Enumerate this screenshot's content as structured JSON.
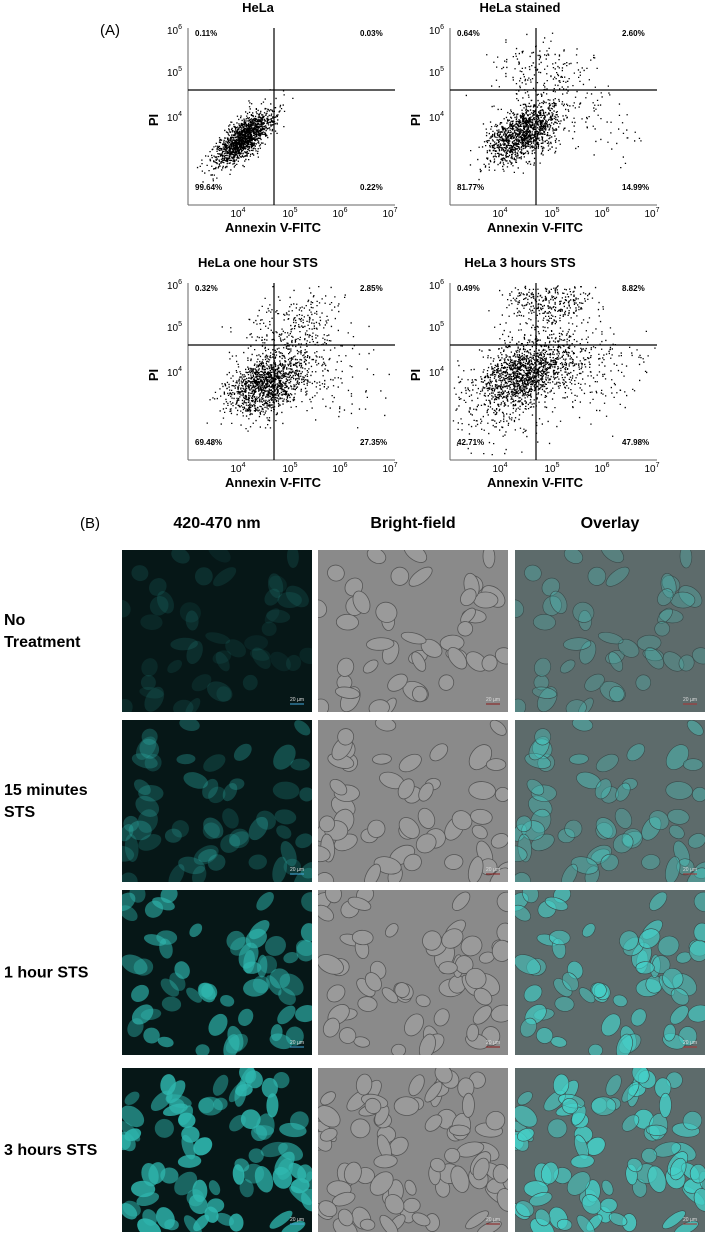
{
  "panel_a": {
    "label": "(A)",
    "x_axis_label": "Annexin V-FITC",
    "y_axis_label": "PI",
    "xticks": [
      {
        "base": "10",
        "exp": "4"
      },
      {
        "base": "10",
        "exp": "5"
      },
      {
        "base": "10",
        "exp": "6"
      },
      {
        "base": "10",
        "exp": "7"
      }
    ],
    "yticks": [
      {
        "base": "10",
        "exp": "6"
      },
      {
        "base": "10",
        "exp": "5"
      },
      {
        "base": "10",
        "exp": "4"
      }
    ],
    "plots": [
      {
        "title": "HeLa",
        "quadrants": {
          "top_left": "0.11%",
          "top_right": "0.03%",
          "bottom_left": "99.64%",
          "bottom_right": "0.22%"
        }
      },
      {
        "title": "HeLa stained",
        "quadrants": {
          "top_left": "0.64%",
          "top_right": "2.60%",
          "bottom_left": "81.77%",
          "bottom_right": "14.99%"
        }
      },
      {
        "title": "HeLa one hour STS",
        "quadrants": {
          "top_left": "0.32%",
          "top_right": "2.85%",
          "bottom_left": "69.48%",
          "bottom_right": "27.35%"
        }
      },
      {
        "title": "HeLa 3 hours STS",
        "quadrants": {
          "top_left": "0.49%",
          "top_right": "8.82%",
          "bottom_left": "42.71%",
          "bottom_right": "47.98%"
        }
      }
    ]
  },
  "panel_b": {
    "label": "(B)",
    "columns": [
      "420-470 nm",
      "Bright-field",
      "Overlay"
    ],
    "rows": [
      {
        "label": [
          "No",
          "Treatment"
        ]
      },
      {
        "label": [
          "15 minutes",
          "STS"
        ]
      },
      {
        "label": [
          "1 hour STS"
        ]
      },
      {
        "label": [
          "3 hours STS"
        ]
      }
    ],
    "scale_bar": "20 µm"
  }
}
